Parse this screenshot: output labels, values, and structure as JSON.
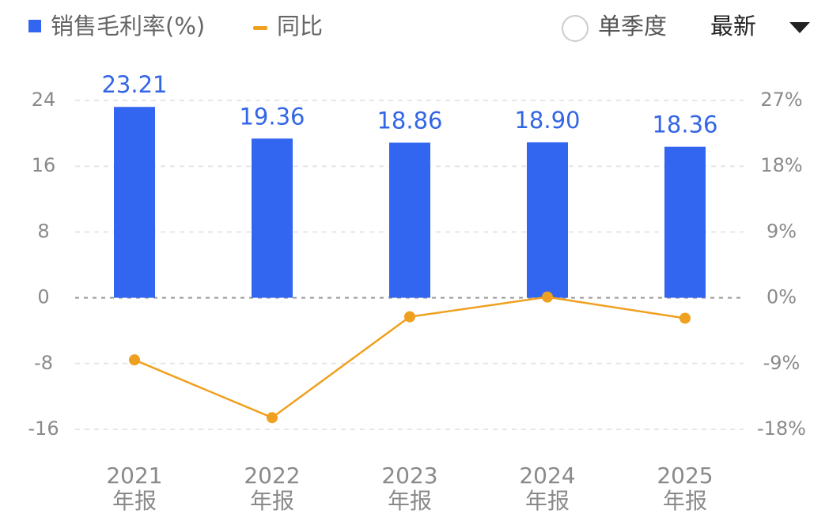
{
  "chart_data": {
    "type": "bar-line",
    "categories": [
      [
        "2021",
        "年报"
      ],
      [
        "2022",
        "年报"
      ],
      [
        "2023",
        "年报"
      ],
      [
        "2024",
        "年报"
      ],
      [
        "2025",
        "年报"
      ]
    ],
    "series": [
      {
        "name": "销售毛利率(%)",
        "type": "bar",
        "color": "#3366f0",
        "values": [
          23.21,
          19.36,
          18.86,
          18.9,
          18.36
        ],
        "value_labels": [
          "23.21",
          "19.36",
          "18.86",
          "18.90",
          "18.36"
        ]
      },
      {
        "name": "同比",
        "type": "line",
        "axis": "y2",
        "color": "#f0a020",
        "values": [
          -8.5,
          -16.4,
          -2.6,
          0.1,
          -2.8
        ]
      }
    ],
    "ylim": [
      -16,
      24
    ],
    "yticks": [
      -16,
      -8,
      0,
      8,
      16,
      24
    ],
    "y2lim": [
      -18,
      27
    ],
    "y2ticks": [
      {
        "value": -18,
        "label": "-18%"
      },
      {
        "value": -9,
        "label": "-9%"
      },
      {
        "value": 0,
        "label": "0%"
      },
      {
        "value": 9,
        "label": "9%"
      },
      {
        "value": 18,
        "label": "18%"
      },
      {
        "value": 27,
        "label": "27%"
      }
    ],
    "grid": true,
    "controls": {
      "radio": "单季度",
      "dropdown": "最新"
    }
  }
}
